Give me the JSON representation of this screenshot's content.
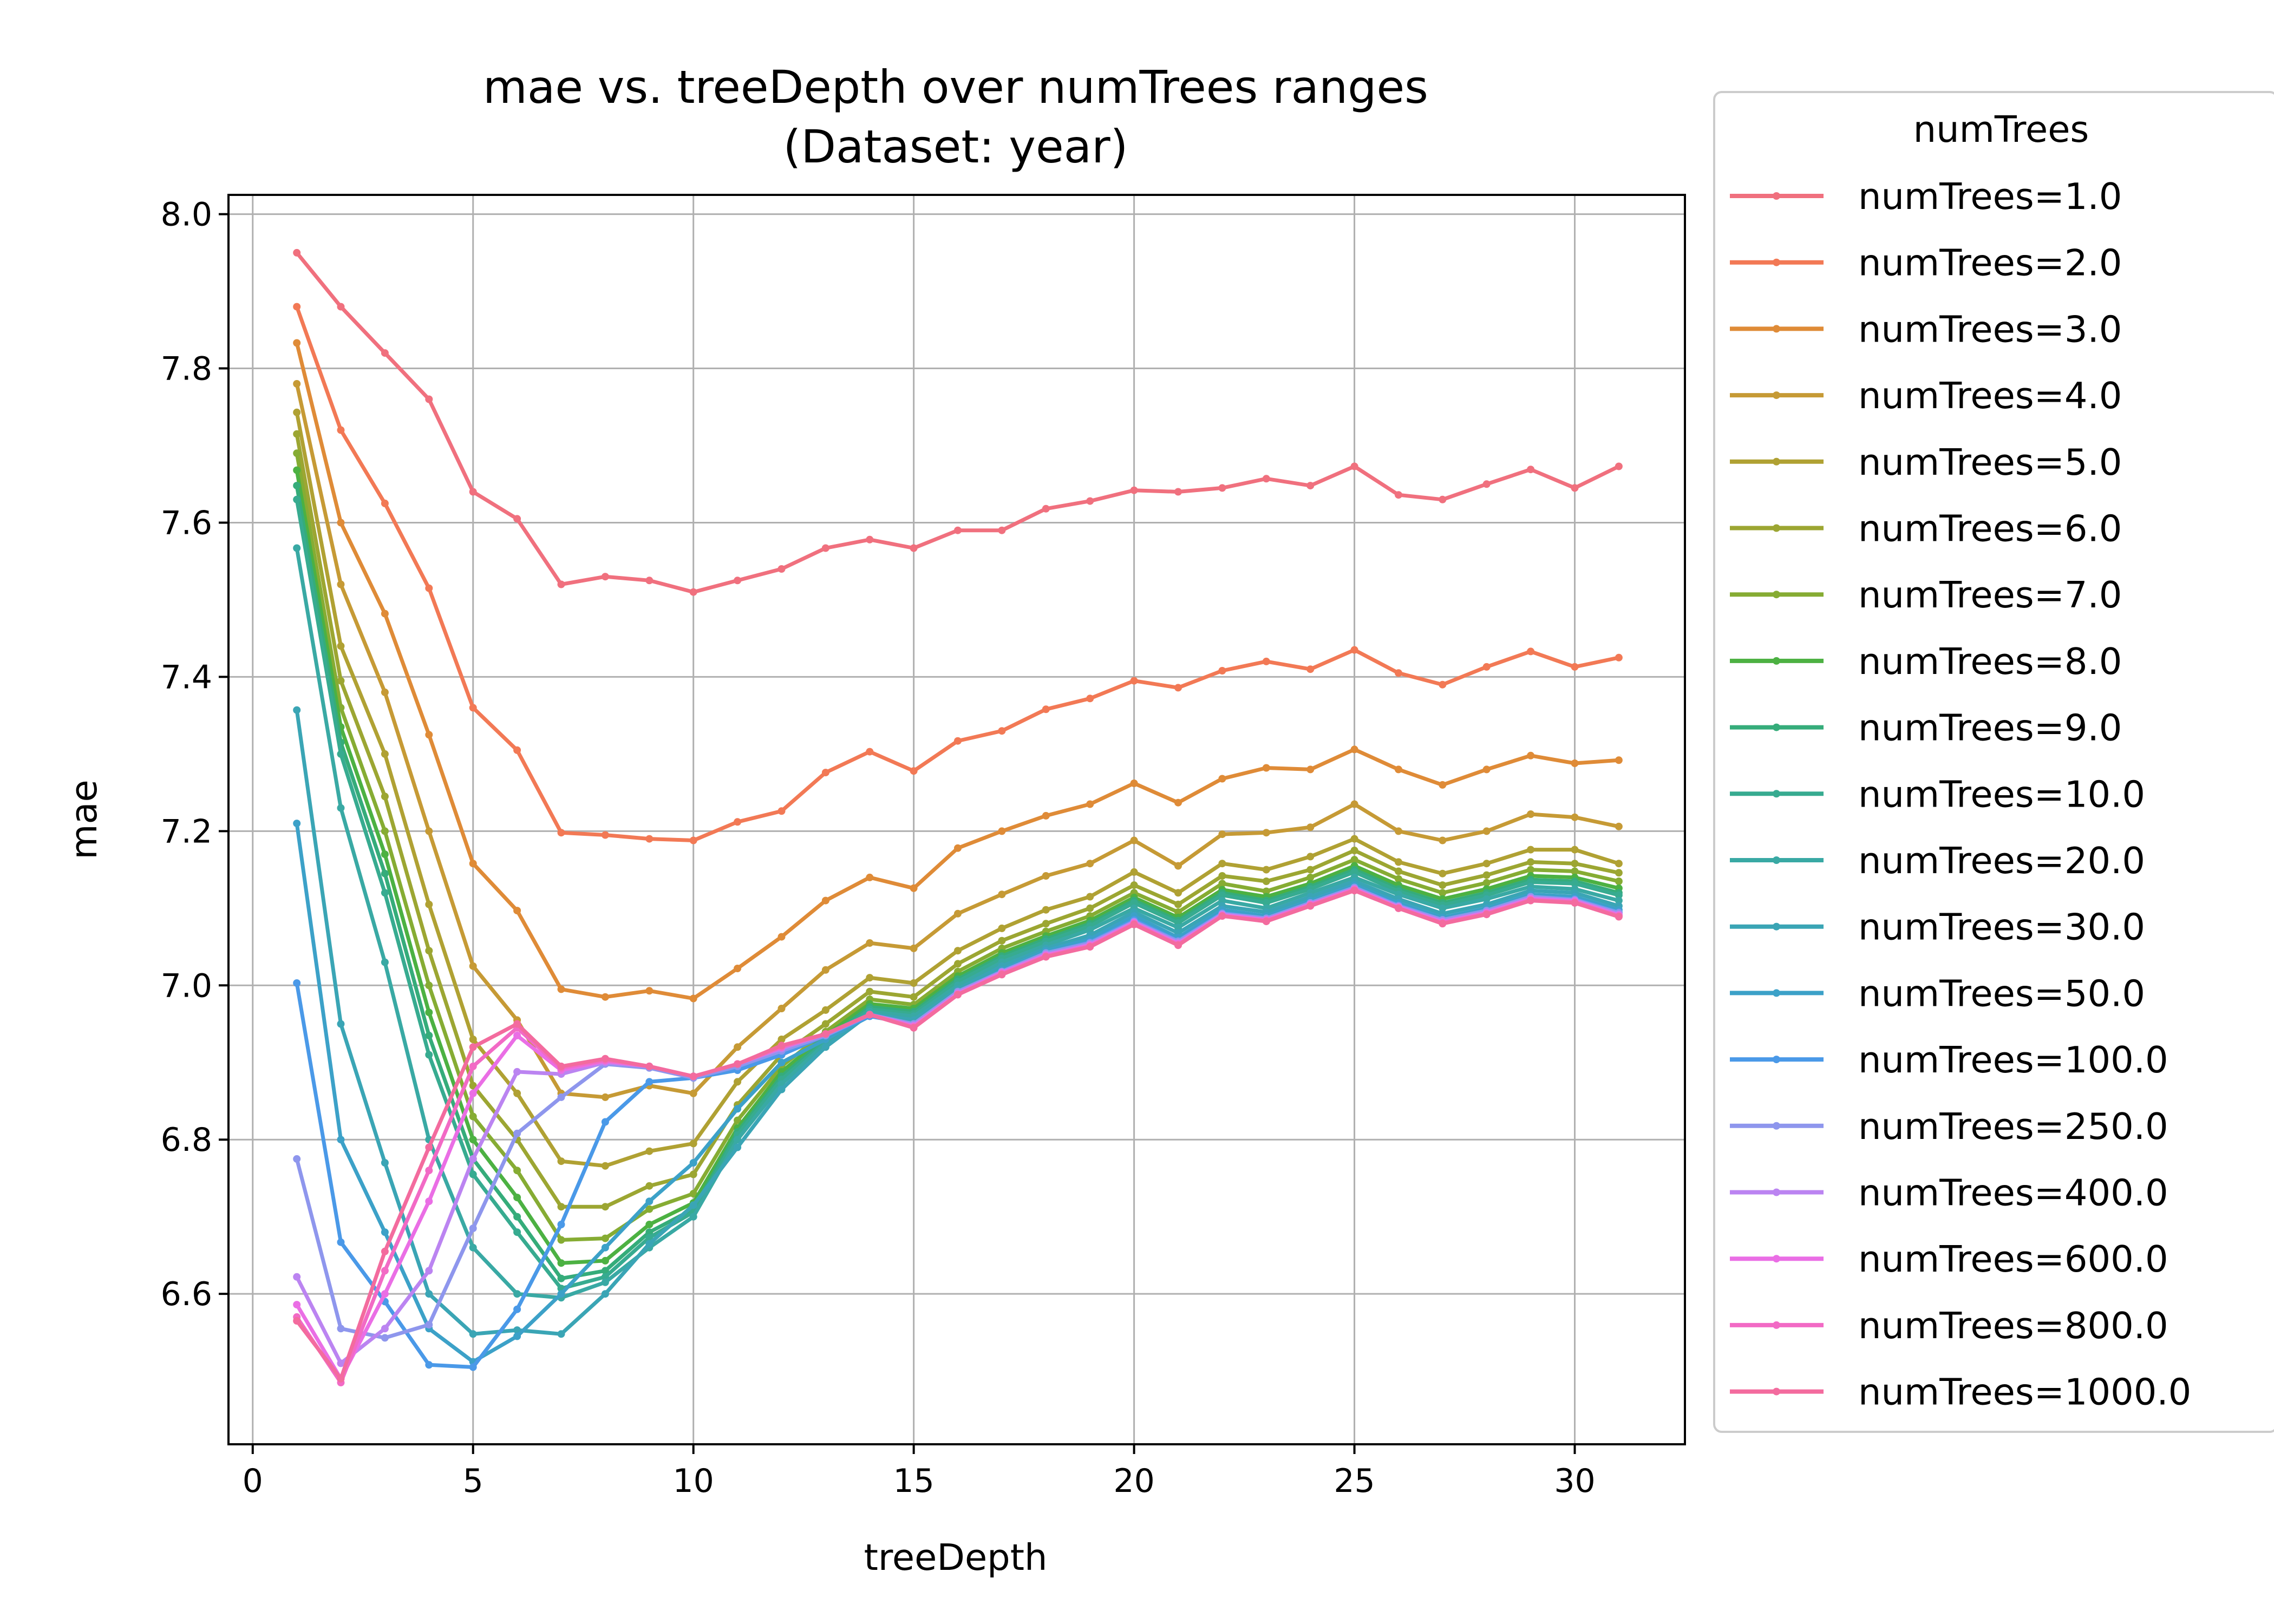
{
  "chart_data": {
    "type": "line",
    "title": "mae vs. treeDepth over numTrees ranges",
    "subtitle": "(Dataset: year)",
    "xlabel": "treeDepth",
    "ylabel": "mae",
    "xlim": [
      -0.55,
      32.5
    ],
    "ylim": [
      6.405,
      8.025
    ],
    "xticks": [
      0,
      5,
      10,
      15,
      20,
      25,
      30
    ],
    "yticks": [
      6.6,
      6.8,
      7.0,
      7.2,
      7.4,
      7.6,
      7.8,
      8.0
    ],
    "xtick_labels": [
      "0",
      "5",
      "10",
      "15",
      "20",
      "25",
      "30"
    ],
    "ytick_labels": [
      "6.6",
      "6.8",
      "7.0",
      "7.2",
      "7.4",
      "7.6",
      "7.8",
      "8.0"
    ],
    "grid": true,
    "legend_title": "numTrees",
    "legend_position": "outside-right-top",
    "x": [
      1,
      2,
      3,
      4,
      5,
      6,
      7,
      8,
      9,
      10,
      11,
      12,
      13,
      14,
      15,
      16,
      17,
      18,
      19,
      20,
      21,
      22,
      23,
      24,
      25,
      26,
      27,
      28,
      29,
      30,
      31
    ],
    "series": [
      {
        "name": "numTrees=1.0",
        "color": "#f0707e",
        "values": [
          7.95,
          7.88,
          7.82,
          7.76,
          7.64,
          7.605,
          7.52,
          7.53,
          7.525,
          7.51,
          7.525,
          7.54,
          7.567,
          7.578,
          7.567,
          7.59,
          7.59,
          7.618,
          7.628,
          7.642,
          7.64,
          7.645,
          7.657,
          7.648,
          7.673,
          7.636,
          7.63,
          7.65,
          7.669,
          7.645,
          7.673
        ]
      },
      {
        "name": "numTrees=2.0",
        "color": "#f27955",
        "values": [
          7.88,
          7.72,
          7.625,
          7.515,
          7.36,
          7.305,
          7.198,
          7.195,
          7.19,
          7.188,
          7.212,
          7.226,
          7.276,
          7.303,
          7.278,
          7.317,
          7.33,
          7.358,
          7.372,
          7.395,
          7.386,
          7.408,
          7.42,
          7.41,
          7.435,
          7.405,
          7.39,
          7.413,
          7.433,
          7.413,
          7.425
        ]
      },
      {
        "name": "numTrees=3.0",
        "color": "#df8b37",
        "values": [
          7.833,
          7.6,
          7.482,
          7.325,
          7.158,
          7.097,
          6.995,
          6.985,
          6.993,
          6.983,
          7.022,
          7.063,
          7.11,
          7.14,
          7.126,
          7.178,
          7.2,
          7.22,
          7.235,
          7.262,
          7.237,
          7.268,
          7.282,
          7.28,
          7.306,
          7.28,
          7.26,
          7.28,
          7.298,
          7.288,
          7.292
        ]
      },
      {
        "name": "numTrees=4.0",
        "color": "#c69a35",
        "values": [
          7.78,
          7.52,
          7.38,
          7.2,
          7.025,
          6.955,
          6.86,
          6.855,
          6.87,
          6.86,
          6.92,
          6.97,
          7.02,
          7.055,
          7.048,
          7.093,
          7.118,
          7.142,
          7.158,
          7.188,
          7.155,
          7.196,
          7.198,
          7.205,
          7.235,
          7.2,
          7.188,
          7.2,
          7.222,
          7.218,
          7.206
        ]
      },
      {
        "name": "numTrees=5.0",
        "color": "#b0a133",
        "values": [
          7.743,
          7.44,
          7.3,
          7.105,
          6.93,
          6.86,
          6.772,
          6.766,
          6.785,
          6.795,
          6.875,
          6.93,
          6.968,
          7.01,
          7.003,
          7.045,
          7.074,
          7.098,
          7.115,
          7.147,
          7.12,
          7.158,
          7.15,
          7.167,
          7.19,
          7.16,
          7.145,
          7.158,
          7.176,
          7.176,
          7.158
        ]
      },
      {
        "name": "numTrees=6.0",
        "color": "#9ca632",
        "values": [
          7.715,
          7.395,
          7.245,
          7.045,
          6.87,
          6.8,
          6.713,
          6.713,
          6.74,
          6.755,
          6.845,
          6.91,
          6.95,
          6.992,
          6.985,
          7.028,
          7.058,
          7.08,
          7.1,
          7.13,
          7.105,
          7.142,
          7.135,
          7.15,
          7.175,
          7.148,
          7.13,
          7.143,
          7.16,
          7.158,
          7.146
        ]
      },
      {
        "name": "numTrees=7.0",
        "color": "#86ac33",
        "values": [
          7.69,
          7.36,
          7.2,
          7.0,
          6.83,
          6.76,
          6.67,
          6.672,
          6.71,
          6.73,
          6.825,
          6.895,
          6.94,
          6.982,
          6.975,
          7.018,
          7.048,
          7.07,
          7.09,
          7.12,
          7.095,
          7.132,
          7.122,
          7.14,
          7.163,
          7.138,
          7.12,
          7.133,
          7.15,
          7.148,
          7.135
        ]
      },
      {
        "name": "numTrees=8.0",
        "color": "#4cb142",
        "values": [
          7.668,
          7.335,
          7.17,
          6.965,
          6.8,
          6.725,
          6.64,
          6.643,
          6.69,
          6.718,
          6.815,
          6.888,
          6.935,
          6.976,
          6.97,
          7.012,
          7.042,
          7.064,
          7.084,
          7.114,
          7.088,
          7.124,
          7.115,
          7.132,
          7.155,
          7.13,
          7.112,
          7.125,
          7.142,
          7.14,
          7.126
        ]
      },
      {
        "name": "numTrees=9.0",
        "color": "#35ac7a",
        "values": [
          7.648,
          7.315,
          7.145,
          6.935,
          6.775,
          6.7,
          6.62,
          6.63,
          6.68,
          6.71,
          6.81,
          6.882,
          6.93,
          6.972,
          6.966,
          7.008,
          7.038,
          7.06,
          7.08,
          7.11,
          7.084,
          7.12,
          7.11,
          7.128,
          7.15,
          7.125,
          7.107,
          7.12,
          7.137,
          7.135,
          7.12
        ]
      },
      {
        "name": "numTrees=10.0",
        "color": "#37ab90",
        "values": [
          7.63,
          7.3,
          7.12,
          6.91,
          6.755,
          6.68,
          6.607,
          6.622,
          6.673,
          6.706,
          6.806,
          6.878,
          6.927,
          6.969,
          6.963,
          7.005,
          7.035,
          7.057,
          7.077,
          7.107,
          7.081,
          7.117,
          7.107,
          7.125,
          7.147,
          7.122,
          7.104,
          7.117,
          7.134,
          7.132,
          7.117
        ]
      },
      {
        "name": "numTrees=20.0",
        "color": "#39a9a4",
        "values": [
          7.567,
          7.23,
          7.03,
          6.8,
          6.66,
          6.6,
          6.595,
          6.615,
          6.66,
          6.7,
          6.8,
          6.872,
          6.925,
          6.966,
          6.96,
          7.0,
          7.03,
          7.052,
          7.072,
          7.1,
          7.075,
          7.11,
          7.1,
          7.12,
          7.14,
          7.118,
          7.1,
          7.112,
          7.128,
          7.125,
          7.11
        ]
      },
      {
        "name": "numTrees=30.0",
        "color": "#3aa5b5",
        "values": [
          7.357,
          6.95,
          6.77,
          6.6,
          6.548,
          6.553,
          6.548,
          6.6,
          6.665,
          6.715,
          6.79,
          6.865,
          6.92,
          6.963,
          6.955,
          6.995,
          7.025,
          7.048,
          7.065,
          7.095,
          7.068,
          7.103,
          7.095,
          7.115,
          7.135,
          7.112,
          7.093,
          7.105,
          7.123,
          7.12,
          7.103
        ]
      },
      {
        "name": "numTrees=50.0",
        "color": "#3ca1c8",
        "values": [
          7.21,
          6.8,
          6.68,
          6.555,
          6.512,
          6.545,
          6.6,
          6.66,
          6.72,
          6.77,
          6.84,
          6.9,
          6.93,
          6.96,
          6.95,
          6.99,
          7.02,
          7.045,
          7.06,
          7.09,
          7.062,
          7.098,
          7.09,
          7.11,
          7.13,
          7.107,
          7.088,
          7.1,
          7.118,
          7.115,
          7.098
        ]
      },
      {
        "name": "numTrees=100.0",
        "color": "#4a99e8",
        "values": [
          7.003,
          6.667,
          6.59,
          6.508,
          6.505,
          6.58,
          6.69,
          6.823,
          6.875,
          6.88,
          6.89,
          6.91,
          6.935,
          6.96,
          6.95,
          6.99,
          7.018,
          7.042,
          7.056,
          7.085,
          7.058,
          7.094,
          7.087,
          7.107,
          7.127,
          7.104,
          7.085,
          7.097,
          7.115,
          7.112,
          7.095
        ]
      },
      {
        "name": "numTrees=250.0",
        "color": "#8e96ed",
        "values": [
          6.775,
          6.555,
          6.543,
          6.56,
          6.685,
          6.808,
          6.855,
          6.898,
          6.893,
          6.88,
          6.895,
          6.915,
          6.935,
          6.962,
          6.95,
          6.992,
          7.018,
          7.042,
          7.055,
          7.083,
          7.057,
          7.093,
          7.087,
          7.107,
          7.127,
          7.103,
          7.085,
          7.097,
          7.115,
          7.111,
          7.094
        ]
      },
      {
        "name": "numTrees=400.0",
        "color": "#bb84f1",
        "values": [
          6.622,
          6.51,
          6.555,
          6.63,
          6.775,
          6.888,
          6.885,
          6.9,
          6.895,
          6.882,
          6.898,
          6.918,
          6.937,
          6.962,
          6.948,
          6.99,
          7.017,
          7.04,
          7.053,
          7.082,
          7.055,
          7.092,
          7.085,
          7.105,
          7.125,
          7.102,
          7.083,
          7.095,
          7.113,
          7.11,
          7.092
        ]
      },
      {
        "name": "numTrees=600.0",
        "color": "#ea6ee5",
        "values": [
          6.586,
          6.49,
          6.6,
          6.72,
          6.86,
          6.935,
          6.89,
          6.902,
          6.895,
          6.882,
          6.898,
          6.92,
          6.937,
          6.962,
          6.947,
          6.989,
          7.016,
          7.039,
          7.052,
          7.081,
          7.054,
          7.091,
          7.085,
          7.105,
          7.125,
          7.101,
          7.082,
          7.094,
          7.112,
          7.109,
          7.091
        ]
      },
      {
        "name": "numTrees=800.0",
        "color": "#f26ac5",
        "values": [
          6.57,
          6.485,
          6.63,
          6.76,
          6.895,
          6.945,
          6.893,
          6.903,
          6.895,
          6.882,
          6.898,
          6.92,
          6.937,
          6.962,
          6.946,
          6.988,
          7.015,
          7.038,
          7.051,
          7.08,
          7.053,
          7.09,
          7.084,
          7.104,
          7.124,
          7.1,
          7.081,
          7.093,
          7.111,
          7.108,
          7.09
        ]
      },
      {
        "name": "numTrees=1000.0",
        "color": "#f36b9e",
        "values": [
          6.565,
          6.49,
          6.655,
          6.79,
          6.92,
          6.95,
          6.895,
          6.905,
          6.895,
          6.882,
          6.898,
          6.922,
          6.937,
          6.962,
          6.945,
          6.988,
          7.014,
          7.037,
          7.05,
          7.079,
          7.052,
          7.09,
          7.083,
          7.103,
          7.123,
          7.1,
          7.08,
          7.092,
          7.11,
          7.107,
          7.089
        ]
      }
    ]
  }
}
